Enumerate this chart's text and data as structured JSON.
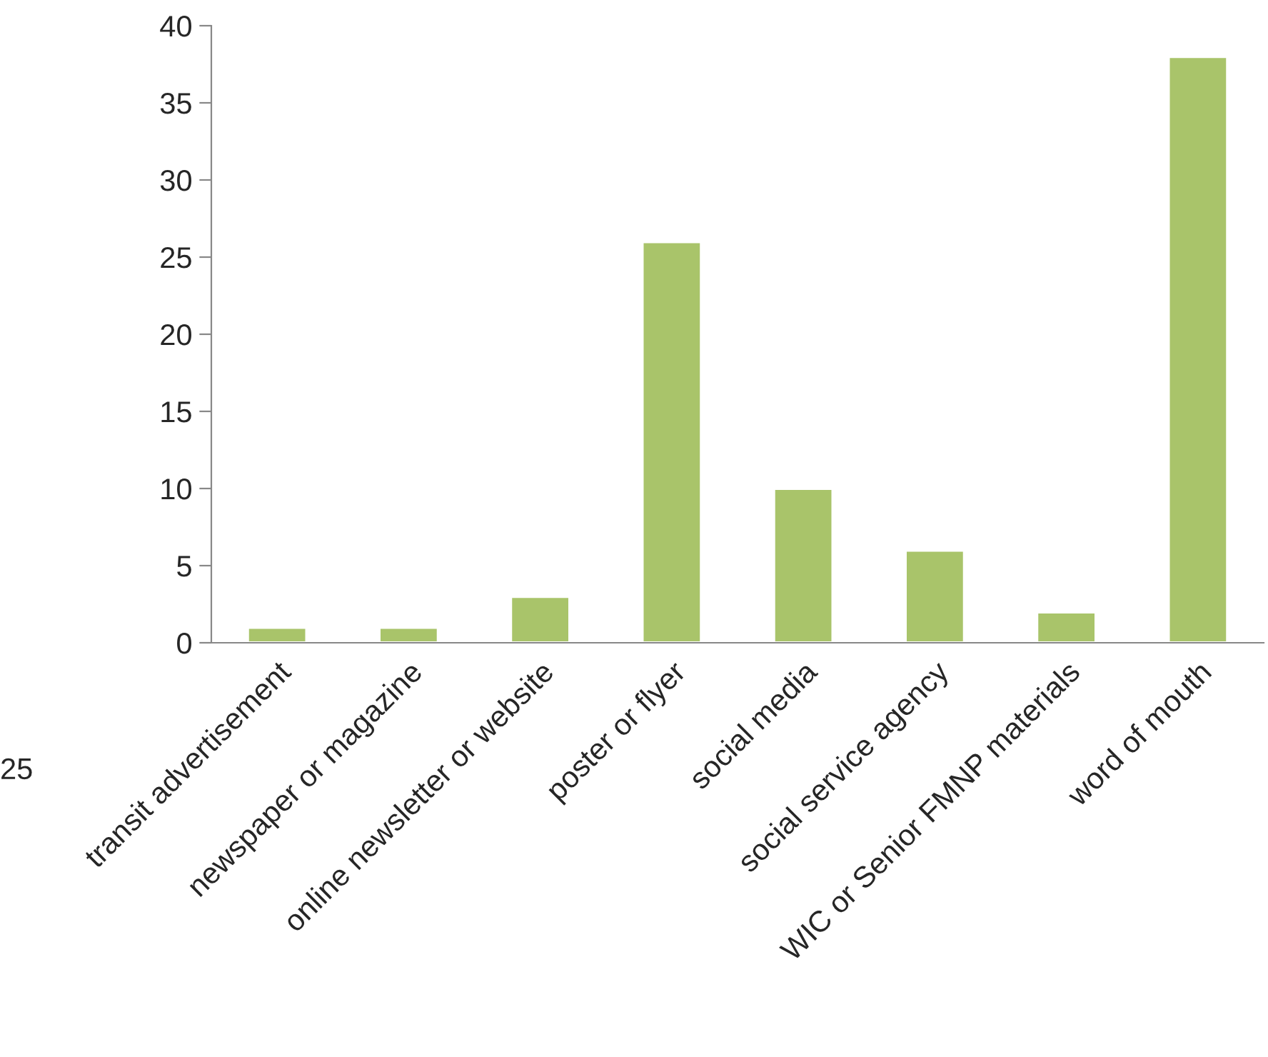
{
  "chart_data": {
    "type": "bar",
    "categories": [
      "transit advertisement",
      "newspaper or magazine",
      "online newsletter or website",
      "poster or flyer",
      "social media",
      "social service agency",
      "WIC or Senior FMNP materials",
      "word of mouth"
    ],
    "values": [
      1,
      1,
      3,
      26,
      10,
      6,
      2,
      38
    ],
    "color": "#a9c46a",
    "ylim": [
      0,
      40
    ],
    "yticks": [
      0,
      5,
      10,
      15,
      20,
      25,
      30,
      35,
      40
    ],
    "annotations": [
      "25"
    ]
  }
}
